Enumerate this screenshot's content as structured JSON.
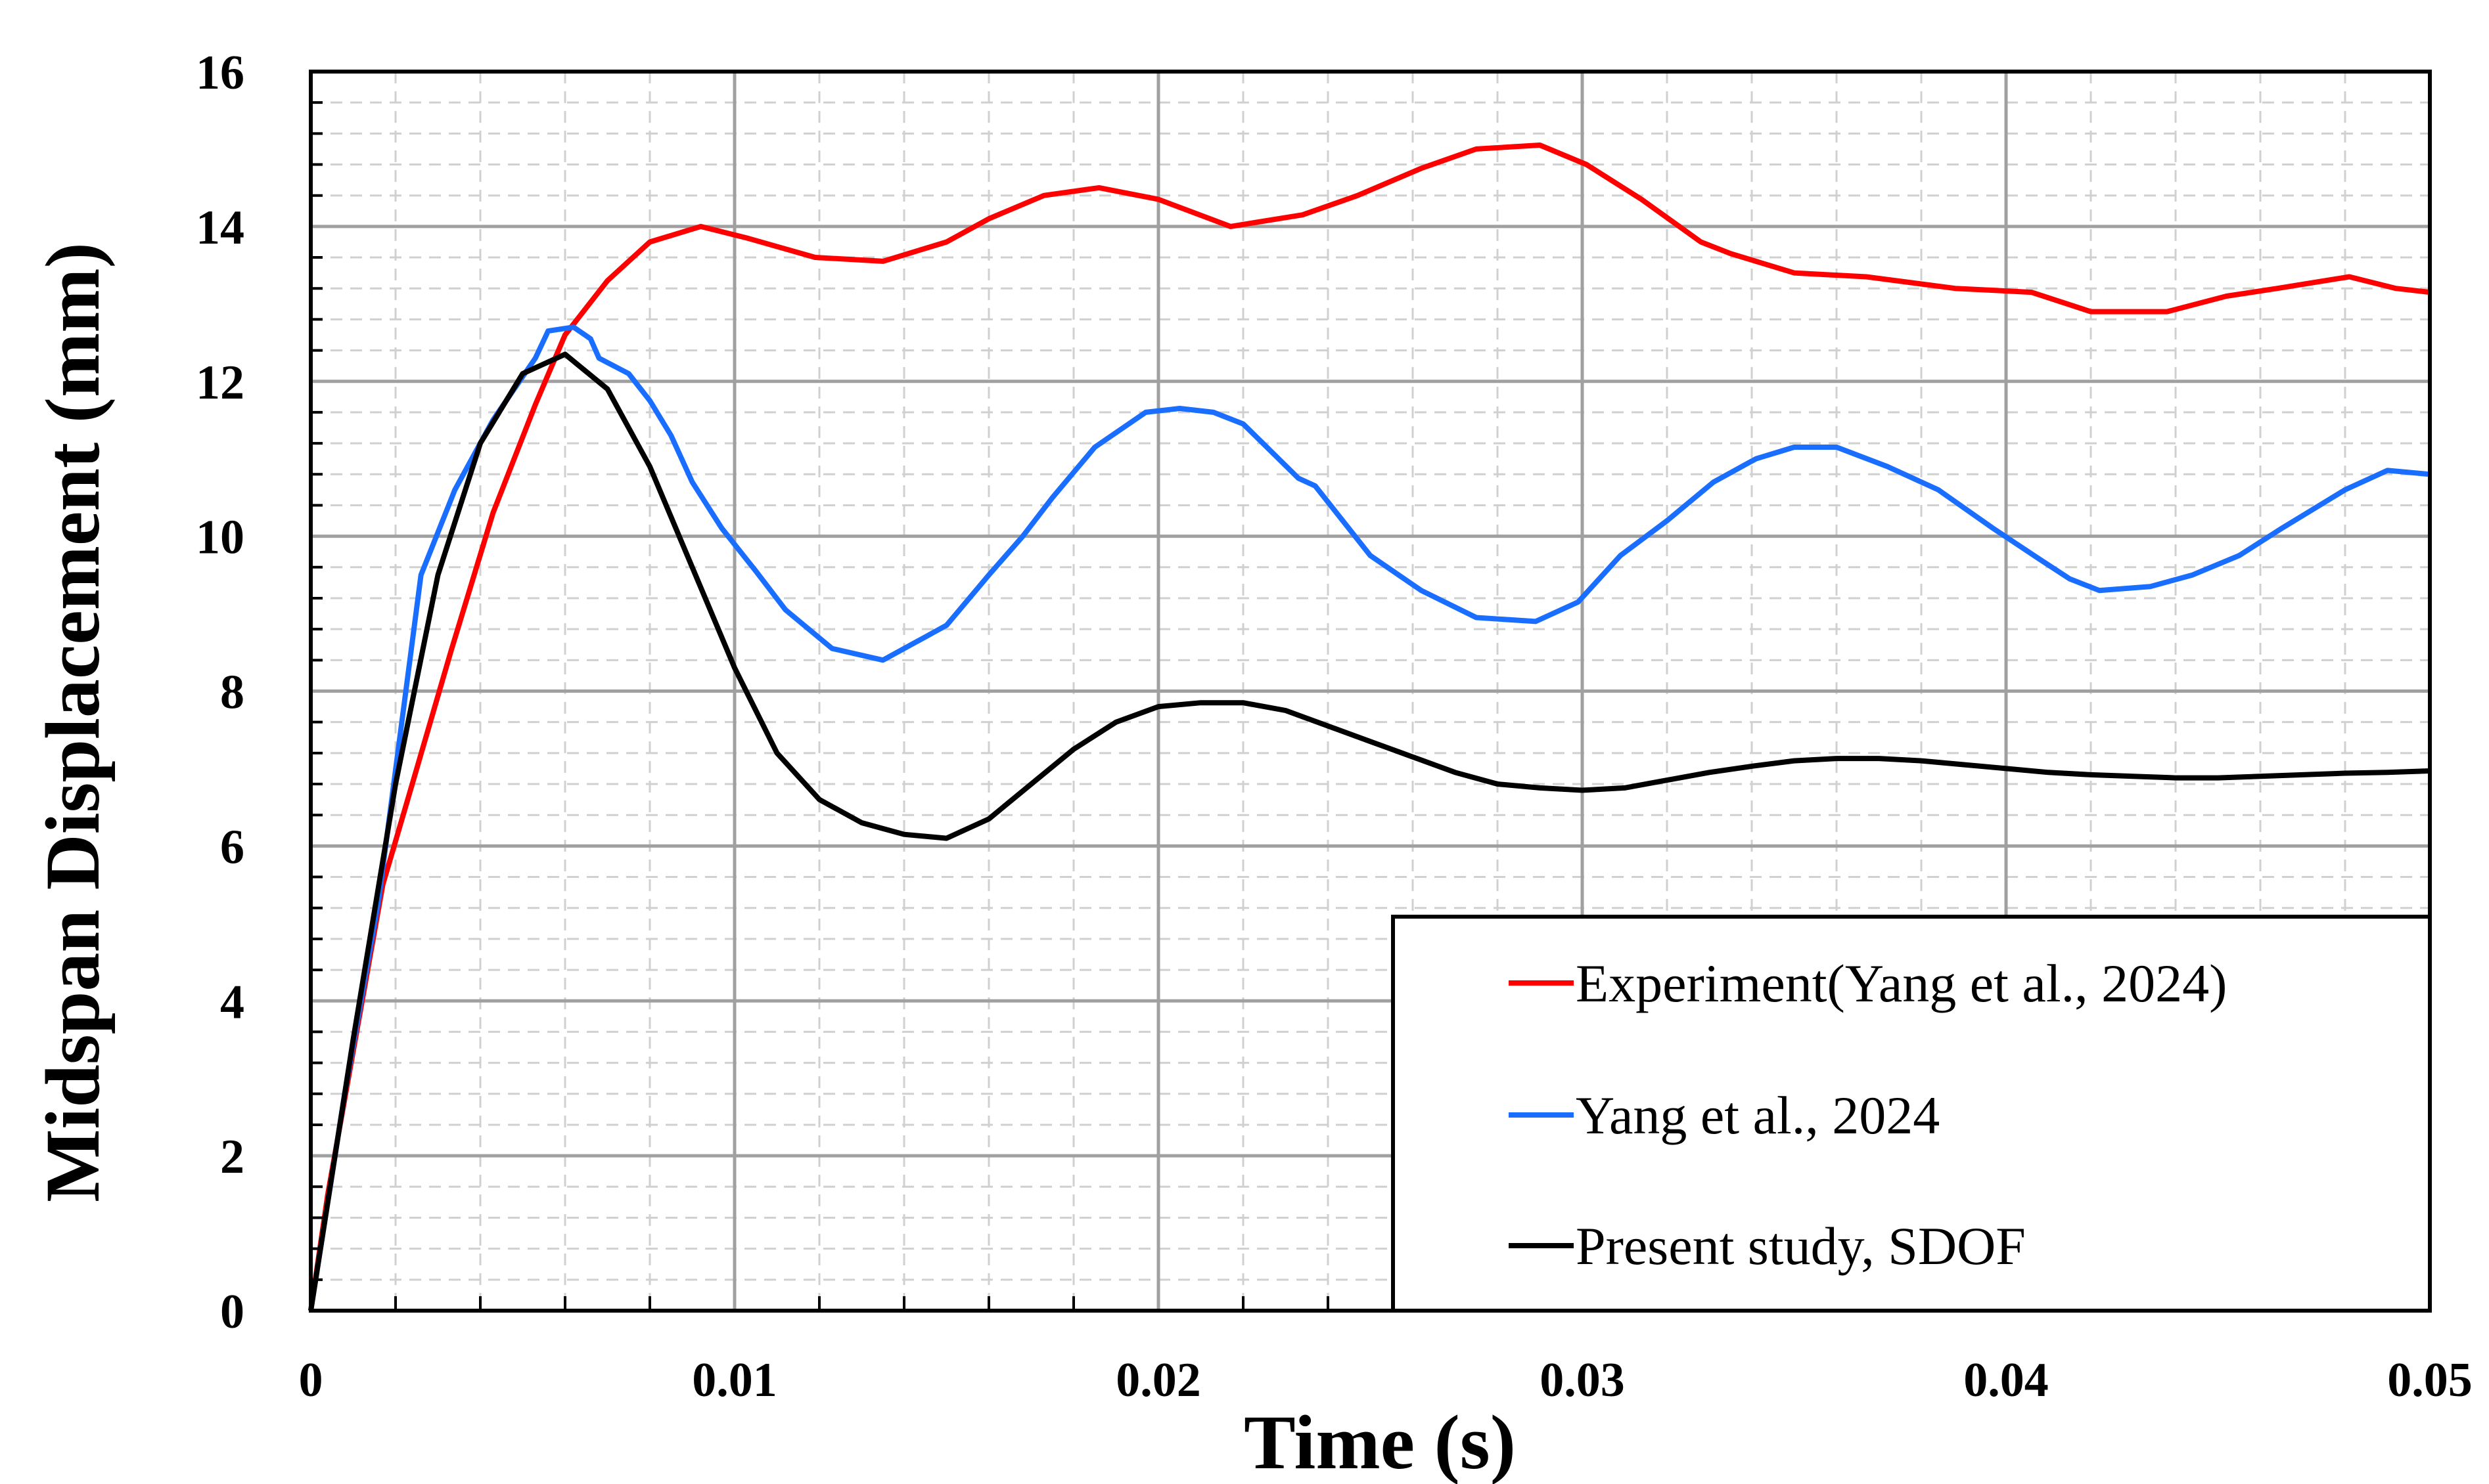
{
  "chart_data": {
    "type": "line",
    "title": "",
    "xlabel": "Time (s)",
    "ylabel": "Midspan Displacement (mm)",
    "xlim": [
      0,
      0.05
    ],
    "ylim": [
      0,
      16
    ],
    "xticks": [
      0,
      0.01,
      0.02,
      0.03,
      0.04,
      0.05
    ],
    "xtick_labels": [
      "0",
      "0.01",
      "0.02",
      "0.03",
      "0.04",
      "0.05"
    ],
    "yticks": [
      0,
      2,
      4,
      6,
      8,
      10,
      12,
      14,
      16
    ],
    "ytick_labels": [
      "0",
      "2",
      "4",
      "6",
      "8",
      "10",
      "12",
      "14",
      "16"
    ],
    "grid": true,
    "legend_position": "bottom-right",
    "series": [
      {
        "name": "Experiment(Yang et al., 2024)",
        "color": "#ff0000",
        "x": [
          0,
          0.0004,
          0.0017,
          0.0025,
          0.0033,
          0.0043,
          0.0053,
          0.006,
          0.007,
          0.008,
          0.0092,
          0.0103,
          0.0119,
          0.0135,
          0.015,
          0.016,
          0.0173,
          0.0186,
          0.02,
          0.0217,
          0.0234,
          0.0247,
          0.0262,
          0.0275,
          0.029,
          0.0301,
          0.0314,
          0.0328,
          0.0335,
          0.035,
          0.0367,
          0.0388,
          0.0406,
          0.042,
          0.0438,
          0.0452,
          0.0464,
          0.0481,
          0.0492,
          0.05
        ],
        "y": [
          0,
          1.5,
          5.5,
          7.0,
          8.5,
          10.3,
          11.7,
          12.6,
          13.3,
          13.8,
          14.0,
          13.85,
          13.6,
          13.55,
          13.8,
          14.1,
          14.4,
          14.5,
          14.35,
          14.0,
          14.15,
          14.4,
          14.75,
          15.0,
          15.05,
          14.8,
          14.35,
          13.8,
          13.65,
          13.4,
          13.35,
          13.2,
          13.15,
          12.9,
          12.9,
          13.1,
          13.2,
          13.35,
          13.2,
          13.15
        ]
      },
      {
        "name": "Yang et al., 2024",
        "color": "#1a6eff",
        "x": [
          0,
          0.0008,
          0.0016,
          0.0026,
          0.0034,
          0.0043,
          0.0053,
          0.0056,
          0.0062,
          0.0066,
          0.0068,
          0.0075,
          0.008,
          0.0085,
          0.009,
          0.0097,
          0.0105,
          0.0112,
          0.0123,
          0.0135,
          0.015,
          0.016,
          0.0168,
          0.0175,
          0.0185,
          0.0197,
          0.0205,
          0.0213,
          0.022,
          0.0233,
          0.0237,
          0.025,
          0.0262,
          0.0275,
          0.0289,
          0.0299,
          0.0309,
          0.032,
          0.0331,
          0.0341,
          0.035,
          0.036,
          0.0372,
          0.0384,
          0.0397,
          0.0408,
          0.0415,
          0.0422,
          0.0434,
          0.0444,
          0.0455,
          0.0465,
          0.048,
          0.049,
          0.05
        ],
        "y": [
          0,
          2.8,
          5.3,
          9.5,
          10.6,
          11.5,
          12.3,
          12.65,
          12.7,
          12.55,
          12.3,
          12.1,
          11.75,
          11.3,
          10.7,
          10.1,
          9.55,
          9.05,
          8.55,
          8.4,
          8.85,
          9.5,
          10.0,
          10.5,
          11.15,
          11.6,
          11.65,
          11.6,
          11.45,
          10.75,
          10.65,
          9.75,
          9.3,
          8.95,
          8.9,
          9.15,
          9.75,
          10.2,
          10.7,
          11.0,
          11.15,
          11.15,
          10.9,
          10.6,
          10.1,
          9.7,
          9.45,
          9.3,
          9.35,
          9.5,
          9.75,
          10.1,
          10.6,
          10.85,
          10.8
        ]
      },
      {
        "name": "Present study, SDOF",
        "color": "#000000",
        "x": [
          0,
          0.001,
          0.002,
          0.003,
          0.004,
          0.005,
          0.006,
          0.007,
          0.008,
          0.009,
          0.01,
          0.011,
          0.012,
          0.013,
          0.014,
          0.015,
          0.016,
          0.017,
          0.018,
          0.019,
          0.02,
          0.021,
          0.022,
          0.023,
          0.024,
          0.025,
          0.026,
          0.027,
          0.028,
          0.029,
          0.03,
          0.031,
          0.032,
          0.033,
          0.034,
          0.035,
          0.036,
          0.037,
          0.038,
          0.039,
          0.04,
          0.041,
          0.042,
          0.043,
          0.044,
          0.045,
          0.046,
          0.047,
          0.048,
          0.049,
          0.05
        ],
        "y": [
          0,
          3.5,
          6.8,
          9.5,
          11.2,
          12.1,
          12.35,
          11.9,
          10.9,
          9.6,
          8.3,
          7.2,
          6.6,
          6.3,
          6.15,
          6.1,
          6.35,
          6.8,
          7.25,
          7.6,
          7.8,
          7.85,
          7.85,
          7.75,
          7.55,
          7.35,
          7.15,
          6.95,
          6.8,
          6.75,
          6.72,
          6.75,
          6.85,
          6.95,
          7.03,
          7.1,
          7.13,
          7.13,
          7.1,
          7.05,
          7.0,
          6.95,
          6.92,
          6.9,
          6.88,
          6.88,
          6.9,
          6.92,
          6.94,
          6.95,
          6.97
        ]
      }
    ]
  }
}
